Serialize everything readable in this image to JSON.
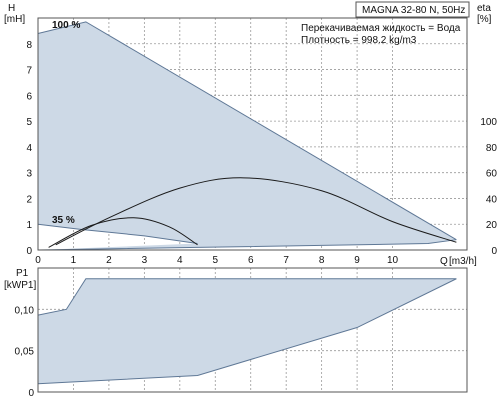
{
  "chart_data": [
    {
      "type": "area",
      "title": "MAGNA 32-80 N, 50Hz",
      "annotations": [
        "Перекачиваемая жидкость = Вода",
        "Плотность = 998.2 kg/m3"
      ],
      "ylabel": "H",
      "yunit": "[mH]",
      "xlabel": "Q",
      "xunit": "[m3/h]",
      "y2label": "eta",
      "y2unit": "[%]",
      "xlim": [
        0,
        12.1
      ],
      "ylim": [
        0,
        9
      ],
      "y2lim": [
        0,
        180
      ],
      "x_ticks": [
        0,
        1,
        2,
        3,
        4,
        5,
        6,
        7,
        8,
        9,
        10
      ],
      "y_ticks": [
        0,
        1,
        2,
        3,
        4,
        5,
        6,
        7,
        8
      ],
      "y2_ticks": [
        0,
        20,
        40,
        60,
        80,
        100
      ],
      "grid": true,
      "series": [
        {
          "name": "100 %",
          "role": "head-max",
          "x": [
            0,
            1.35,
            11.8
          ],
          "y": [
            8.4,
            8.85,
            0.4
          ]
        },
        {
          "name": "35 %",
          "role": "head-min",
          "x": [
            0,
            1.2,
            3.0,
            4.5
          ],
          "y": [
            1.0,
            0.8,
            0.55,
            0.25
          ]
        },
        {
          "role": "operating-area-bottom",
          "x": [
            0,
            4.5,
            11.0,
            11.8
          ],
          "y": [
            0,
            0.1,
            0.25,
            0.4
          ]
        },
        {
          "role": "eta-max",
          "x": [
            0.5,
            2,
            4,
            5.8,
            8,
            10,
            11.8
          ],
          "y": [
            4,
            25,
            48,
            56,
            46,
            22,
            6
          ]
        },
        {
          "role": "eta-min",
          "x": [
            0.3,
            1.5,
            2.7,
            3.7,
            4.5
          ],
          "y": [
            2,
            19,
            25,
            18,
            4
          ]
        }
      ]
    },
    {
      "type": "area",
      "ylabel": "P1",
      "yunit": "[kWP1]",
      "xlim": [
        0,
        12.1
      ],
      "ylim": [
        0,
        0.15
      ],
      "y_ticks": [
        "0",
        "0,05",
        "0,10"
      ],
      "y_tick_values": [
        0,
        0.05,
        0.1
      ],
      "grid": true,
      "series": [
        {
          "role": "power-max",
          "x": [
            0,
            0.8,
            1.35,
            11.8
          ],
          "y": [
            0.093,
            0.1,
            0.137,
            0.137
          ]
        },
        {
          "role": "power-min",
          "x": [
            0,
            4.5,
            9.0,
            11.8
          ],
          "y": [
            0.01,
            0.02,
            0.078,
            0.137
          ]
        }
      ]
    }
  ],
  "colors": {
    "fill": "#cdd9e6",
    "curve": "#5f7896",
    "eta": "#1a1a1a",
    "grid": "#9a9a9a",
    "frame": "#555555"
  }
}
